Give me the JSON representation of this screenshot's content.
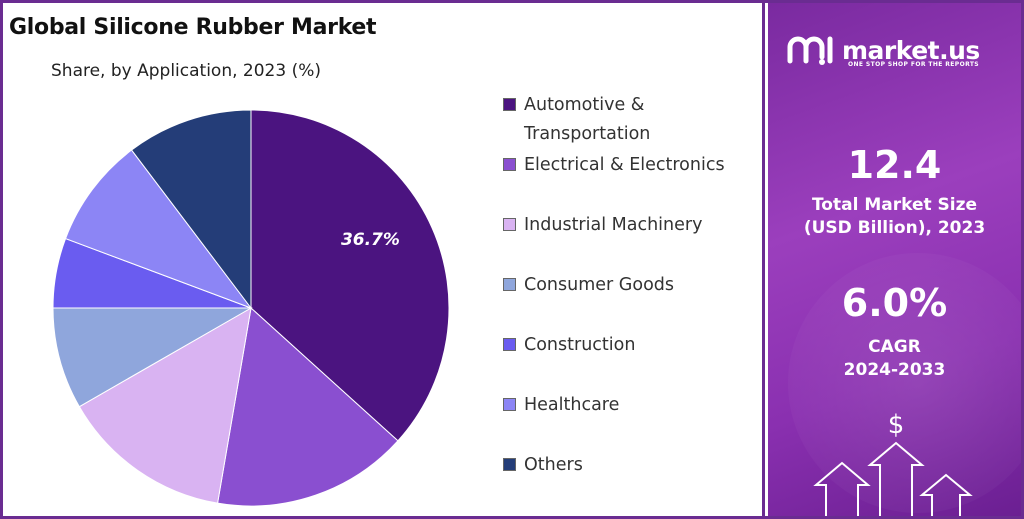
{
  "title": "Global Silicone Rubber Market",
  "subtitle": "Share, by Application, 2023 (%)",
  "chart_data": {
    "type": "pie",
    "categories": [
      "Automotive & Transportation",
      "Electrical & Electronics",
      "Industrial Machinery",
      "Consumer Goods",
      "Construction",
      "Healthcare",
      "Others"
    ],
    "values": [
      36.7,
      16.0,
      14.0,
      8.3,
      5.7,
      9.0,
      10.3
    ],
    "data_labels": [
      "36.7%",
      "",
      "",
      "",
      "",
      "",
      ""
    ],
    "colors": [
      "#4b1480",
      "#8a4fd0",
      "#d9b3f2",
      "#8fa6dc",
      "#6a5cf0",
      "#8c85f5",
      "#243d78"
    ],
    "legend_position": "right"
  },
  "sidebar": {
    "brand": "market.us",
    "tagline": "ONE STOP SHOP FOR THE REPORTS",
    "market_size_value": "12.4",
    "market_size_label_line1": "Total Market Size",
    "market_size_label_line2": "(USD Billion), 2023",
    "cagr_value": "6.0%",
    "cagr_label_line1": "CAGR",
    "cagr_label_line2": "2024-2033",
    "currency_symbol": "$"
  }
}
